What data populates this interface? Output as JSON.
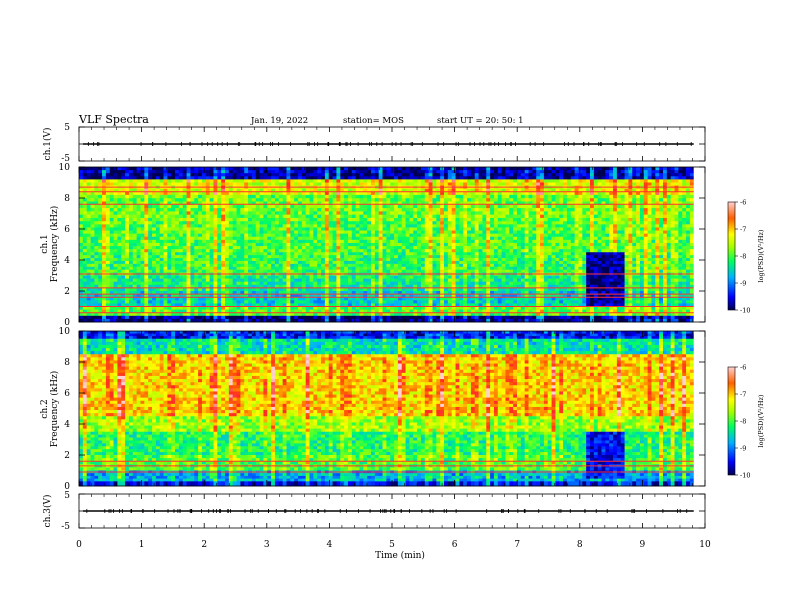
{
  "header": {
    "title": "VLF Spectra",
    "date": "Jan. 19, 2022",
    "station": "station= MOS",
    "start": "start  UT =   20: 50: 1"
  },
  "chart_data": [
    {
      "type": "line",
      "name": "ch1-waveform",
      "ylabel": "ch.1(V)",
      "ylim": [
        -5,
        5
      ],
      "yticks": [
        "5",
        "-5"
      ],
      "x": [
        0,
        10
      ],
      "values": [
        0,
        0
      ]
    },
    {
      "type": "heatmap",
      "name": "ch1-spectrogram",
      "ylabel_top": "ch.1",
      "ylabel": "Frequency (kHz)",
      "ylim": [
        0,
        10
      ],
      "yticks": [
        "0",
        "2",
        "4",
        "6",
        "8",
        "10"
      ],
      "xlim": [
        0,
        10
      ],
      "data_end_x": 9.82,
      "colorbar": {
        "label": "log(PSD)(V²/Hz)",
        "range": [
          -10,
          -6
        ],
        "ticks": [
          "-6",
          "-7",
          "-8",
          "-9",
          "-10"
        ]
      },
      "bands": [
        {
          "f": [
            9.2,
            10.0
          ],
          "level": -9.8
        },
        {
          "f": [
            8.2,
            9.2
          ],
          "level": -7.4
        },
        {
          "f": [
            6.5,
            8.2
          ],
          "level": -7.9
        },
        {
          "f": [
            4.5,
            6.5
          ],
          "level": -8.0
        },
        {
          "f": [
            3.0,
            4.5
          ],
          "level": -8.1
        },
        {
          "f": [
            2.0,
            3.0
          ],
          "level": -8.3
        },
        {
          "f": [
            1.0,
            2.0
          ],
          "level": -8.6
        },
        {
          "f": [
            0.4,
            1.0
          ],
          "level": -8.0
        },
        {
          "f": [
            0.0,
            0.4
          ],
          "level": -9.9
        }
      ],
      "lines_khz": [
        8.7,
        8.4,
        7.6,
        3.1,
        2.2,
        1.8,
        1.6,
        1.0,
        0.6
      ],
      "quiet_interval": {
        "x": [
          8.08,
          8.7
        ],
        "f": [
          1.0,
          4.5
        ],
        "level": -9.8
      }
    },
    {
      "type": "heatmap",
      "name": "ch2-spectrogram",
      "ylabel_top": "ch.2",
      "ylabel": "Frequency (kHz)",
      "ylim": [
        0,
        10
      ],
      "yticks": [
        "0",
        "2",
        "4",
        "6",
        "8",
        "10"
      ],
      "xlim": [
        0,
        10
      ],
      "data_end_x": 9.82,
      "colorbar": {
        "label": "log(PSD)(V²/Hz)",
        "range": [
          -10,
          -6
        ],
        "ticks": [
          "-6",
          "-7",
          "-8",
          "-9",
          "-10"
        ]
      },
      "bands": [
        {
          "f": [
            9.5,
            10.0
          ],
          "level": -9.5
        },
        {
          "f": [
            8.5,
            9.5
          ],
          "level": -8.5
        },
        {
          "f": [
            4.5,
            8.5
          ],
          "level": -7.1
        },
        {
          "f": [
            3.5,
            4.5
          ],
          "level": -7.7
        },
        {
          "f": [
            2.0,
            3.5
          ],
          "level": -8.2
        },
        {
          "f": [
            1.0,
            2.0
          ],
          "level": -8.0
        },
        {
          "f": [
            0.3,
            1.0
          ],
          "level": -8.8
        },
        {
          "f": [
            0.0,
            0.3
          ],
          "level": -9.5
        }
      ],
      "lines_khz": [
        1.6,
        1.3,
        0.9
      ],
      "quiet_interval": {
        "x": [
          8.05,
          8.7
        ],
        "f": [
          0.5,
          3.5
        ],
        "level": -9.5
      }
    },
    {
      "type": "line",
      "name": "ch3-waveform",
      "ylabel": "ch.3(V)",
      "ylim": [
        -5,
        5
      ],
      "yticks": [
        "5",
        "-5"
      ],
      "x": [
        0,
        10
      ],
      "values": [
        0,
        0
      ]
    }
  ],
  "xaxis": {
    "label": "Time  (min)",
    "ticks": [
      "0",
      "1",
      "2",
      "3",
      "4",
      "5",
      "6",
      "7",
      "8",
      "9",
      "10"
    ],
    "range": [
      0,
      10
    ]
  }
}
